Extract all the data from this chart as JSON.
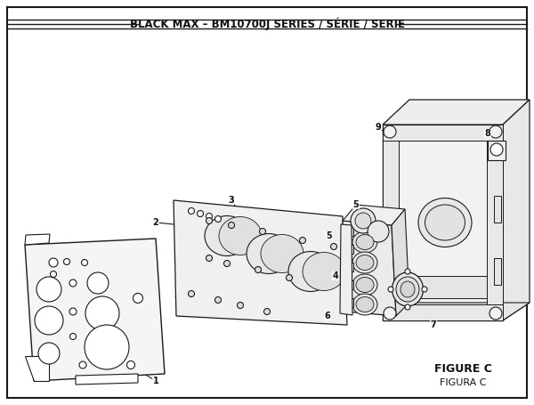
{
  "title": "BLACK MAX – BM10700J SERIES / SÉRIE / SERIE",
  "title_fontsize": 8.5,
  "figure_c_label": "FIGURE C",
  "figura_c_label": "FIGURA C",
  "bg_color": "#ffffff",
  "line_color": "#1a1a1a",
  "text_color": "#111111",
  "figsize": [
    6.0,
    4.55
  ],
  "dpi": 100
}
